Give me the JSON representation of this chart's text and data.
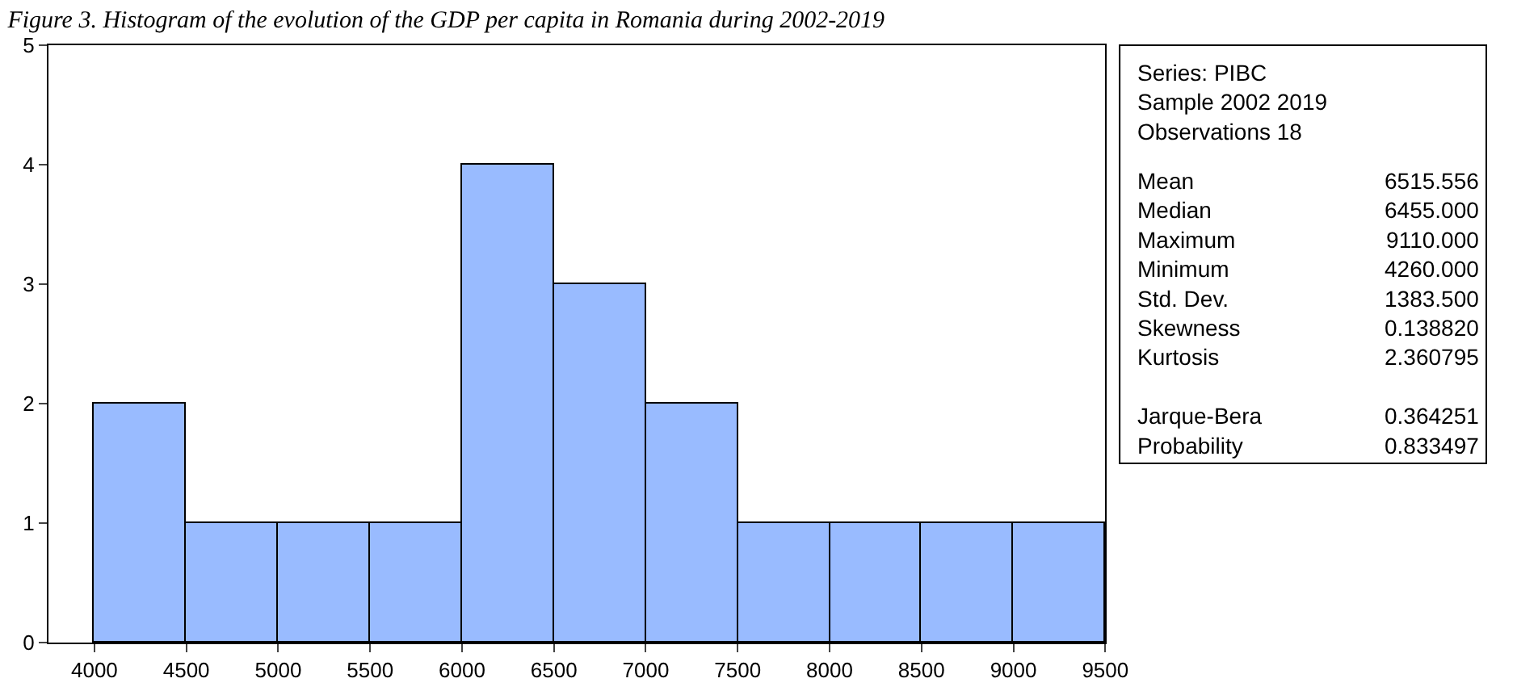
{
  "chart_data": {
    "type": "histogram",
    "title": "Figure 3. Histogram of the evolution of the GDP per capita in Romania during 2002-2019",
    "bins": [
      4000,
      4500,
      5000,
      5500,
      6000,
      6500,
      7000,
      7500,
      8000,
      8500,
      9000,
      9500
    ],
    "values": [
      2,
      1,
      1,
      1,
      4,
      3,
      2,
      1,
      1,
      1,
      1
    ],
    "color": "#99bbff",
    "xlim": [
      3750,
      9500
    ],
    "xticks": [
      4000,
      4500,
      5000,
      5500,
      6000,
      6500,
      7000,
      7500,
      8000,
      8500,
      9000,
      9500
    ],
    "ylim": [
      0,
      5
    ],
    "yticks": [
      0,
      1,
      2,
      3,
      4,
      5
    ],
    "annotations": [
      "Series: PIBC\nSample 2002 2019\nObservations 18",
      "Mean\nMedian\nMaximum\nMinimum\nStd. Dev.\nSkewness\nKurtosis\n\nJarque-Bera\nProbability",
      "6515.556\n6455.000\n9110.000\n4260.000\n1383.500\n0.138820\n2.360795\n\n0.364251\n0.833497"
    ]
  }
}
